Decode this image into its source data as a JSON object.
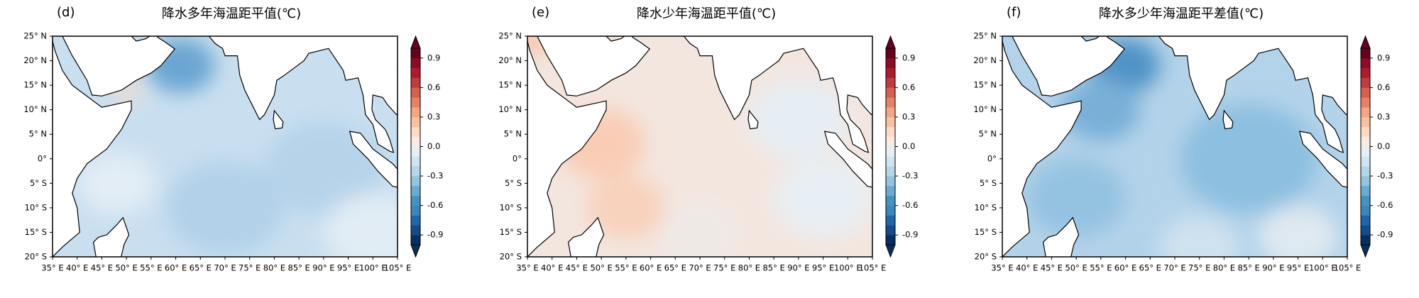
{
  "panels": [
    {
      "label": "(d)",
      "title": "降水多年海温距平值(℃)"
    },
    {
      "label": "(e)",
      "title": "降水少年海温距平值(℃)"
    },
    {
      "label": "(f)",
      "title": "降水多少年海温距平差值(℃)"
    }
  ],
  "lat_ticks": [
    {
      "value": 25,
      "label": "25° N"
    },
    {
      "value": 20,
      "label": "20° N"
    },
    {
      "value": 15,
      "label": "15° N"
    },
    {
      "value": 10,
      "label": "10° N"
    },
    {
      "value": 5,
      "label": "5° N"
    },
    {
      "value": 0,
      "label": "0°"
    },
    {
      "value": -5,
      "label": "5° S"
    },
    {
      "value": -10,
      "label": "10° S"
    },
    {
      "value": -15,
      "label": "15° S"
    },
    {
      "value": -20,
      "label": "20° S"
    }
  ],
  "lon_ticks": [
    {
      "value": 35,
      "label": "35° E"
    },
    {
      "value": 40,
      "label": "40° E"
    },
    {
      "value": 45,
      "label": "45° E"
    },
    {
      "value": 50,
      "label": "50° E"
    },
    {
      "value": 55,
      "label": "55° E"
    },
    {
      "value": 60,
      "label": "60° E"
    },
    {
      "value": 65,
      "label": "65° E"
    },
    {
      "value": 70,
      "label": "70° E"
    },
    {
      "value": 75,
      "label": "75° E"
    },
    {
      "value": 80,
      "label": "80° E"
    },
    {
      "value": 85,
      "label": "85° E"
    },
    {
      "value": 90,
      "label": "90° E"
    },
    {
      "value": 95,
      "label": "95° E"
    },
    {
      "value": 100,
      "label": "100° E"
    },
    {
      "value": 105,
      "label": "105° E"
    }
  ],
  "colorbar": {
    "range": [
      -1,
      1
    ],
    "ticks": [
      0.9,
      0.6,
      0.3,
      {
        "value": 0,
        "label": "0.0"
      },
      {
        "value": -0.3,
        "label": "-0.3"
      },
      {
        "value": -0.6,
        "label": "-0.6"
      },
      {
        "value": -0.9,
        "label": "-0.9"
      }
    ],
    "colormap": [
      "#053061",
      "#134c87",
      "#2166ac",
      "#3a87bd",
      "#4393c3",
      "#6aabd2",
      "#92c5de",
      "#b3d6e8",
      "#d1e5f0",
      "#e6eff5",
      "#f7ebe4",
      "#fddbc7",
      "#f8c0a4",
      "#f4a582",
      "#e58266",
      "#d6604d",
      "#c13a3d",
      "#b2182b",
      "#8d0c25",
      "#67001f"
    ]
  }
}
